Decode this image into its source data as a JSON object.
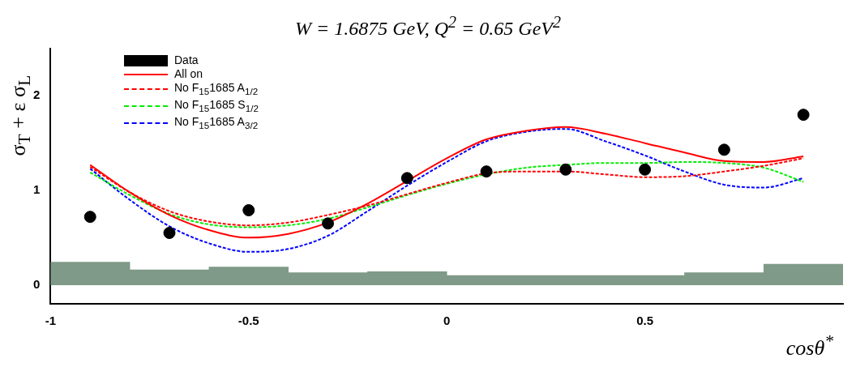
{
  "chart_data": {
    "type": "line",
    "title": "W = 1.6875 GeV, Q$^{2}$ = 0.65 GeV$^{2}$",
    "xlabel": "cosθ$^{*}$",
    "ylabel": "σ$_{T}$ + ε σ$_{L}$",
    "xlim": [
      -1,
      1
    ],
    "xticks": [
      -1,
      -0.5,
      0,
      0.5
    ],
    "ylim": [
      -0.2,
      2.5
    ],
    "yticks": [
      0,
      1,
      2
    ],
    "grid": false,
    "legend": "top left",
    "series": [
      {
        "type": "bar",
        "color": "#7f9a88",
        "x": [
          -0.9,
          -0.7,
          -0.5,
          -0.3,
          -0.1,
          0.1,
          0.3,
          0.5,
          0.7,
          0.9
        ],
        "values": [
          0.24,
          0.16,
          0.19,
          0.13,
          0.14,
          0.1,
          0.1,
          0.1,
          0.13,
          0.22
        ]
      },
      {
        "name": "Data",
        "type": "scatter",
        "marker": "circle",
        "color": "#000000",
        "x": [
          -0.9,
          -0.7,
          -0.5,
          -0.3,
          -0.1,
          0.1,
          0.3,
          0.5,
          0.7,
          0.9
        ],
        "values": [
          0.72,
          0.55,
          0.79,
          0.65,
          1.13,
          1.2,
          1.22,
          1.22,
          1.43,
          1.8
        ]
      },
      {
        "name": "All on",
        "line_style": "solid",
        "color": "#ff0000",
        "x": [
          -0.9,
          -0.8,
          -0.7,
          -0.6,
          -0.5,
          -0.4,
          -0.3,
          -0.2,
          -0.1,
          0,
          0.1,
          0.2,
          0.3,
          0.4,
          0.5,
          0.6,
          0.7,
          0.8,
          0.9
        ],
        "values": [
          1.27,
          0.98,
          0.74,
          0.58,
          0.5,
          0.54,
          0.66,
          0.86,
          1.1,
          1.34,
          1.54,
          1.63,
          1.67,
          1.6,
          1.5,
          1.4,
          1.31,
          1.3,
          1.36
        ]
      },
      {
        "name": "No F$_{15}$1685 A$_{1/2}$",
        "line_style": "dashed",
        "color": "#ff0000",
        "x": [
          -0.9,
          -0.8,
          -0.7,
          -0.6,
          -0.5,
          -0.4,
          -0.3,
          -0.2,
          -0.1,
          0,
          0.1,
          0.2,
          0.3,
          0.4,
          0.5,
          0.6,
          0.7,
          0.8,
          0.9
        ],
        "values": [
          1.25,
          0.98,
          0.78,
          0.67,
          0.63,
          0.66,
          0.74,
          0.84,
          0.96,
          1.08,
          1.18,
          1.2,
          1.2,
          1.17,
          1.14,
          1.15,
          1.2,
          1.26,
          1.34
        ]
      },
      {
        "name": "No F$_{15}$1685 S$_{1/2}$",
        "line_style": "dashed",
        "color": "#00ee00",
        "x": [
          -0.9,
          -0.8,
          -0.7,
          -0.6,
          -0.5,
          -0.4,
          -0.3,
          -0.2,
          -0.1,
          0,
          0.1,
          0.2,
          0.3,
          0.4,
          0.5,
          0.6,
          0.7,
          0.8,
          0.9
        ],
        "values": [
          1.19,
          0.95,
          0.75,
          0.64,
          0.61,
          0.63,
          0.7,
          0.82,
          0.95,
          1.07,
          1.17,
          1.24,
          1.27,
          1.29,
          1.29,
          1.3,
          1.29,
          1.24,
          1.09
        ]
      },
      {
        "name": "No F$_{15}$1685 A$_{3/2}$",
        "line_style": "dashed",
        "color": "#0000ff",
        "x": [
          -0.9,
          -0.8,
          -0.7,
          -0.6,
          -0.5,
          -0.4,
          -0.3,
          -0.2,
          -0.1,
          0,
          0.1,
          0.2,
          0.3,
          0.4,
          0.5,
          0.6,
          0.7,
          0.8,
          0.9
        ],
        "values": [
          1.23,
          0.9,
          0.62,
          0.44,
          0.35,
          0.38,
          0.52,
          0.78,
          1.05,
          1.3,
          1.52,
          1.62,
          1.65,
          1.52,
          1.37,
          1.2,
          1.06,
          1.03,
          1.13
        ]
      }
    ]
  }
}
